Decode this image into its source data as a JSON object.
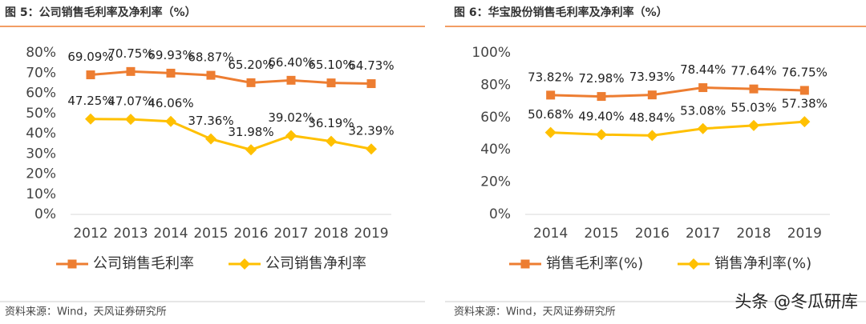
{
  "chart_data": [
    {
      "type": "line",
      "title": "图 5：公司销售毛利率及净利率（%）",
      "categories": [
        "2012",
        "2013",
        "2014",
        "2015",
        "2016",
        "2017",
        "2018",
        "2019"
      ],
      "series": [
        {
          "name": "公司销售毛利率",
          "color": "#ed7d31",
          "marker": "square",
          "values": [
            69.09,
            70.75,
            69.93,
            68.87,
            65.2,
            66.4,
            65.1,
            64.73
          ],
          "value_labels": [
            "69.09%",
            "70.75%",
            "69.93%",
            "68.87%",
            "65.20%",
            "66.40%",
            "65.10%",
            "64.73%"
          ]
        },
        {
          "name": "公司销售净利率",
          "color": "#ffc000",
          "marker": "diamond",
          "values": [
            47.25,
            47.07,
            46.06,
            37.36,
            31.98,
            39.02,
            36.19,
            32.39
          ],
          "value_labels": [
            "47.25%",
            "47.07%",
            "46.06%",
            "37.36%",
            "31.98%",
            "39.02%",
            "36.19%",
            "32.39%"
          ]
        }
      ],
      "ylim": [
        0,
        80
      ],
      "yticks": [
        {
          "value": 0,
          "label": "0%"
        },
        {
          "value": 10,
          "label": "10%"
        },
        {
          "value": 20,
          "label": "20%"
        },
        {
          "value": 30,
          "label": "30%"
        },
        {
          "value": 40,
          "label": "40%"
        },
        {
          "value": 50,
          "label": "50%"
        },
        {
          "value": 60,
          "label": "60%"
        },
        {
          "value": 70,
          "label": "70%"
        },
        {
          "value": 80,
          "label": "80%"
        }
      ],
      "grid": false,
      "legend": "bottom",
      "source": "资料来源：Wind，天风证券研究所"
    },
    {
      "type": "line",
      "title": "图 6：华宝股份销售毛利率及净利率（%）",
      "categories": [
        "2014",
        "2015",
        "2016",
        "2017",
        "2018",
        "2019"
      ],
      "series": [
        {
          "name": "销售毛利率(%)",
          "color": "#ed7d31",
          "marker": "square",
          "values": [
            73.82,
            72.98,
            73.93,
            78.44,
            77.64,
            76.75
          ],
          "value_labels": [
            "73.82%",
            "72.98%",
            "73.93%",
            "78.44%",
            "77.64%",
            "76.75%"
          ]
        },
        {
          "name": "销售净利率(%)",
          "color": "#ffc000",
          "marker": "diamond",
          "values": [
            50.68,
            49.4,
            48.84,
            53.08,
            55.03,
            57.38
          ],
          "value_labels": [
            "50.68%",
            "49.40%",
            "48.84%",
            "53.08%",
            "55.03%",
            "57.38%"
          ]
        }
      ],
      "ylim": [
        0,
        100
      ],
      "yticks": [
        {
          "value": 0,
          "label": "0%"
        },
        {
          "value": 20,
          "label": "20%"
        },
        {
          "value": 40,
          "label": "40%"
        },
        {
          "value": 60,
          "label": "60%"
        },
        {
          "value": 80,
          "label": "80%"
        },
        {
          "value": 100,
          "label": "100%"
        }
      ],
      "grid": false,
      "legend": "bottom",
      "source": "资料来源：Wind，天风证券研究所"
    }
  ],
  "watermark": "头条 @冬瓜研库"
}
